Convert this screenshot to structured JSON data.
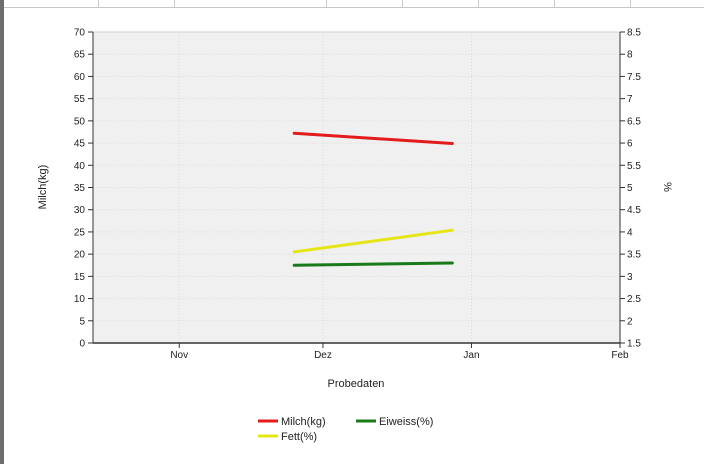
{
  "chart_data": {
    "type": "line",
    "title": "",
    "xlabel": "Probedaten",
    "ylabel": "Milch(kg)",
    "y2label": "%",
    "x_ticks": [
      "Nov",
      "Dez",
      "Jan",
      "Feb"
    ],
    "x_tick_dates": [
      "2023-11-01",
      "2023-12-01",
      "2024-01-01",
      "2024-02-01"
    ],
    "xlim": [
      "2023-10-14",
      "2024-02-01"
    ],
    "ylim": [
      0,
      70
    ],
    "y_ticks": [
      "0",
      "5",
      "10",
      "15",
      "20",
      "25",
      "30",
      "35",
      "40",
      "45",
      "50",
      "55",
      "60",
      "65",
      "70"
    ],
    "y2lim": [
      1.5,
      8.5
    ],
    "y2_ticks": [
      "1.5",
      "2",
      "2.5",
      "3",
      "3.5",
      "4",
      "4.5",
      "5",
      "5.5",
      "6",
      "6.5",
      "7",
      "7.5",
      "8",
      "8.5"
    ],
    "grid": true,
    "legend_position": "bottom-center",
    "series": [
      {
        "name": "Milch(kg)",
        "axis": "left",
        "color": "#e31b1b",
        "points": [
          {
            "x": "2023-11-25",
            "y": 47.2
          },
          {
            "x": "2023-12-28",
            "y": 44.9
          }
        ]
      },
      {
        "name": "Eiweiss(%)",
        "axis": "right",
        "color": "#1a7a1a",
        "points": [
          {
            "x": "2023-11-25",
            "y": 3.25
          },
          {
            "x": "2023-12-28",
            "y": 3.3
          }
        ]
      },
      {
        "name": "Fett(%)",
        "axis": "right",
        "color": "#e6e617",
        "points": [
          {
            "x": "2023-11-25",
            "y": 3.55
          },
          {
            "x": "2023-12-28",
            "y": 4.04
          }
        ]
      }
    ]
  }
}
